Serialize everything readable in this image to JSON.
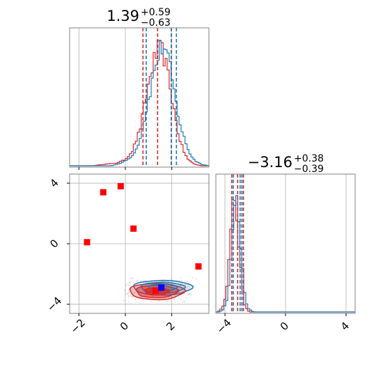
{
  "chart_data": {
    "type": "corner-plot",
    "colors": {
      "series_a": "#1f77b4",
      "series_b": "#d62728",
      "truth": "#0000ff",
      "points": "#ff0000",
      "grid": "#b0b0b0",
      "frame": "#808080"
    },
    "panels": {
      "param1_hist": {
        "type": "histogram",
        "title": {
          "median": "1.39",
          "upper": "+0.59",
          "lower": "−0.63"
        },
        "xlim": [
          -2.4,
          3.6
        ],
        "grid": true,
        "series_a_quantiles": [
          0.9,
          1.98,
          2.2
        ],
        "series_b_quantiles": [
          0.76,
          1.39,
          1.98
        ],
        "series_a_profile": [
          [
            -0.6,
            0.0
          ],
          [
            -0.2,
            0.02
          ],
          [
            0.2,
            0.06
          ],
          [
            0.5,
            0.14
          ],
          [
            0.7,
            0.27
          ],
          [
            0.9,
            0.45
          ],
          [
            1.1,
            0.62
          ],
          [
            1.3,
            0.8
          ],
          [
            1.5,
            0.93
          ],
          [
            1.65,
            0.96
          ],
          [
            1.8,
            0.88
          ],
          [
            2.0,
            0.7
          ],
          [
            2.2,
            0.48
          ],
          [
            2.4,
            0.3
          ],
          [
            2.6,
            0.18
          ],
          [
            2.8,
            0.09
          ],
          [
            3.0,
            0.04
          ],
          [
            3.3,
            0.01
          ],
          [
            3.6,
            0.0
          ]
        ],
        "series_b_profile": [
          [
            -1.4,
            0.0
          ],
          [
            -1.0,
            0.01
          ],
          [
            -0.4,
            0.02
          ],
          [
            0.0,
            0.05
          ],
          [
            0.3,
            0.12
          ],
          [
            0.6,
            0.27
          ],
          [
            0.8,
            0.45
          ],
          [
            1.0,
            0.65
          ],
          [
            1.2,
            0.82
          ],
          [
            1.4,
            0.92
          ],
          [
            1.55,
            0.93
          ],
          [
            1.7,
            0.85
          ],
          [
            1.9,
            0.66
          ],
          [
            2.1,
            0.44
          ],
          [
            2.3,
            0.24
          ],
          [
            2.5,
            0.12
          ],
          [
            2.7,
            0.05
          ],
          [
            3.0,
            0.01
          ],
          [
            3.3,
            0.0
          ]
        ]
      },
      "param2_hist": {
        "type": "histogram",
        "title": {
          "median": "−3.16",
          "upper": "+0.38",
          "lower": "−0.39"
        },
        "xlim": [
          -4.6,
          4.6
        ],
        "grid": true,
        "series_a_quantiles": [
          -3.45,
          -3.0,
          -2.88
        ],
        "series_b_quantiles": [
          -3.55,
          -3.16,
          -2.78
        ],
        "series_a_profile": [
          [
            -4.4,
            0.0
          ],
          [
            -4.1,
            0.02
          ],
          [
            -3.9,
            0.08
          ],
          [
            -3.7,
            0.25
          ],
          [
            -3.5,
            0.6
          ],
          [
            -3.35,
            0.88
          ],
          [
            -3.2,
            0.9
          ],
          [
            -3.05,
            0.72
          ],
          [
            -2.9,
            0.45
          ],
          [
            -2.75,
            0.2
          ],
          [
            -2.6,
            0.07
          ],
          [
            -2.4,
            0.02
          ],
          [
            -2.1,
            0.0
          ]
        ],
        "series_b_profile": [
          [
            -4.5,
            0.0
          ],
          [
            -4.2,
            0.03
          ],
          [
            -4.0,
            0.1
          ],
          [
            -3.8,
            0.3
          ],
          [
            -3.6,
            0.66
          ],
          [
            -3.45,
            0.88
          ],
          [
            -3.3,
            0.85
          ],
          [
            -3.15,
            0.66
          ],
          [
            -3.0,
            0.4
          ],
          [
            -2.85,
            0.18
          ],
          [
            -2.7,
            0.06
          ],
          [
            -2.5,
            0.01
          ],
          [
            -2.3,
            0.0
          ]
        ]
      },
      "joint": {
        "type": "scatter-contour",
        "xlim": [
          -2.4,
          3.6
        ],
        "ylim": [
          -4.6,
          4.6
        ],
        "grid": true,
        "red_points": [
          [
            -1.65,
            0.1
          ],
          [
            -0.95,
            3.4
          ],
          [
            -0.2,
            3.8
          ],
          [
            0.35,
            1.0
          ],
          [
            3.15,
            -1.5
          ],
          [
            1.3,
            -3.1
          ]
        ],
        "blue_point": [
          1.55,
          -2.9
        ],
        "series_a_center": [
          1.6,
          -2.9
        ],
        "series_b_center": [
          1.35,
          -3.15
        ],
        "series_a_spread": [
          1.1,
          0.42
        ],
        "series_b_spread": [
          1.05,
          0.48
        ]
      }
    },
    "ticks": {
      "param1": [
        "−2",
        "0",
        "2"
      ],
      "param1_values": [
        -2,
        0,
        2
      ],
      "param2": [
        "−4",
        "0",
        "4"
      ],
      "param2_values": [
        -4,
        0,
        4
      ]
    }
  }
}
